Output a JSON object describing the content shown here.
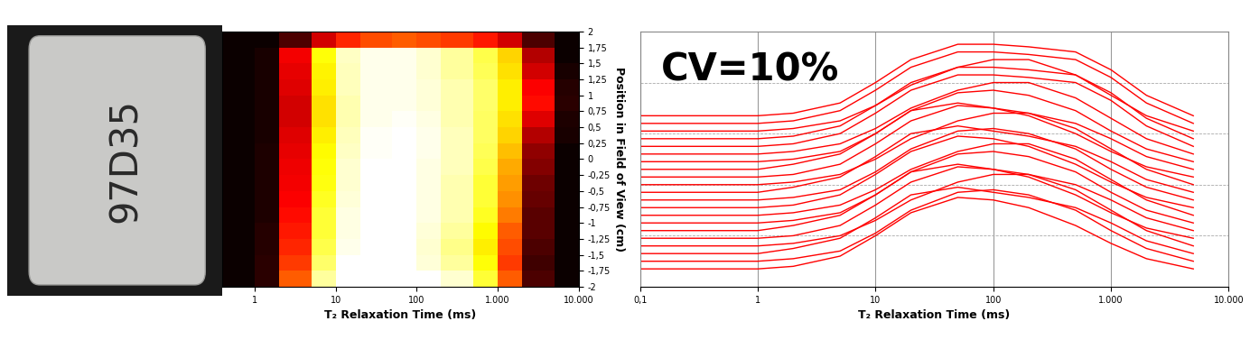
{
  "photo": {
    "label": "97D35"
  },
  "chart_data": [
    {
      "type": "heatmap",
      "xlabel": "T₂ Relaxation Time (ms)",
      "ylabel": "Position in Field of View (cm)",
      "log": "x",
      "color": "hot",
      "value_range": [
        0,
        1
      ],
      "xlim": [
        0.4,
        10000
      ],
      "xticks": [
        1,
        10,
        100,
        {
          "value": 1000,
          "label": "1.000"
        },
        {
          "value": 10000,
          "label": "10.000"
        }
      ],
      "ylim": [
        -2,
        2
      ],
      "yticks": [
        -2,
        {
          "value": -1.75,
          "label": "-1,75"
        },
        {
          "value": -1.5,
          "label": "-1,5"
        },
        {
          "value": -1.25,
          "label": "-1,25"
        },
        -1,
        {
          "value": -0.75,
          "label": "-0,75"
        },
        {
          "value": -0.5,
          "label": "-0,5"
        },
        {
          "value": -0.25,
          "label": "-0,25"
        },
        0,
        {
          "value": 0.25,
          "label": "0,25"
        },
        {
          "value": 0.5,
          "label": "0,5"
        },
        {
          "value": 0.75,
          "label": "0,75"
        },
        1,
        {
          "value": 1.25,
          "label": "1,25"
        },
        {
          "value": 1.5,
          "label": "1,5"
        },
        {
          "value": 1.75,
          "label": "1,75"
        },
        2
      ],
      "x_bins": [
        0.4,
        1,
        2,
        5,
        10,
        20,
        50,
        100,
        200,
        500,
        1000,
        2000,
        5000,
        10000
      ],
      "y_bins": [
        -2,
        -1.75,
        -1.5,
        -1.25,
        -1,
        -0.75,
        -0.5,
        -0.25,
        0,
        0.25,
        0.5,
        0.75,
        1,
        1.25,
        1.5,
        1.75,
        2
      ],
      "cells": [
        [
          0,
          0.05,
          0.5,
          0.9,
          1,
          1,
          1,
          1,
          0.95,
          0.8,
          0.5,
          0.1,
          0
        ],
        [
          0,
          0.05,
          0.45,
          0.85,
          1,
          1,
          1,
          0.96,
          0.9,
          0.75,
          0.45,
          0.08,
          0
        ],
        [
          0,
          0.04,
          0.42,
          0.82,
          0.98,
          1,
          1,
          0.95,
          0.88,
          0.72,
          0.48,
          0.1,
          0
        ],
        [
          0,
          0.04,
          0.4,
          0.8,
          0.97,
          1,
          1,
          0.96,
          0.9,
          0.74,
          0.5,
          0.12,
          0
        ],
        [
          0,
          0.03,
          0.38,
          0.8,
          0.97,
          1,
          1,
          0.97,
          0.92,
          0.78,
          0.55,
          0.12,
          0
        ],
        [
          0,
          0.03,
          0.36,
          0.78,
          0.96,
          1,
          1,
          0.97,
          0.92,
          0.8,
          0.58,
          0.14,
          0
        ],
        [
          0,
          0.03,
          0.35,
          0.76,
          0.95,
          1,
          1,
          0.97,
          0.92,
          0.8,
          0.6,
          0.15,
          0
        ],
        [
          0,
          0.03,
          0.34,
          0.75,
          0.95,
          1,
          1,
          0.97,
          0.93,
          0.82,
          0.62,
          0.18,
          0
        ],
        [
          0,
          0.03,
          0.33,
          0.74,
          0.94,
          0.99,
          1,
          0.98,
          0.93,
          0.83,
          0.65,
          0.2,
          0
        ],
        [
          0,
          0.02,
          0.32,
          0.72,
          0.93,
          0.99,
          1,
          0.98,
          0.93,
          0.84,
          0.68,
          0.25,
          0.02
        ],
        [
          0,
          0.02,
          0.3,
          0.7,
          0.92,
          0.98,
          0.99,
          0.97,
          0.92,
          0.84,
          0.7,
          0.32,
          0.03
        ],
        [
          0,
          0.02,
          0.3,
          0.7,
          0.92,
          0.98,
          0.98,
          0.96,
          0.92,
          0.85,
          0.72,
          0.38,
          0.05
        ],
        [
          0,
          0.02,
          0.32,
          0.72,
          0.93,
          0.98,
          0.98,
          0.96,
          0.92,
          0.85,
          0.72,
          0.36,
          0.04
        ],
        [
          0,
          0.02,
          0.33,
          0.73,
          0.93,
          0.98,
          0.98,
          0.95,
          0.9,
          0.83,
          0.7,
          0.3,
          0.02
        ],
        [
          0,
          0.02,
          0.35,
          0.75,
          0.94,
          0.98,
          0.98,
          0.95,
          0.9,
          0.82,
          0.68,
          0.25,
          0
        ],
        [
          0,
          0,
          0.1,
          0.3,
          0.42,
          0.48,
          0.5,
          0.48,
          0.45,
          0.4,
          0.3,
          0.1,
          0
        ]
      ]
    },
    {
      "type": "line",
      "annotation": "CV=10%",
      "xlabel": "T₂ Relaxation Time (ms)",
      "log": "x",
      "grid": true,
      "tick_labels": "x",
      "color": "#ff0000",
      "xlim": [
        0.1,
        10000
      ],
      "xticks": [
        {
          "value": 0.1,
          "label": "0,1"
        },
        1,
        10,
        100,
        {
          "value": 1000,
          "label": "1.000"
        },
        {
          "value": 10000,
          "label": "10.000"
        }
      ],
      "ylim": [
        0,
        100
      ],
      "yticks": [
        0,
        20,
        40,
        60,
        80,
        100
      ],
      "x": [
        0.1,
        1,
        2,
        5,
        10,
        20,
        50,
        100,
        200,
        500,
        1000,
        2000,
        5000
      ],
      "series": [
        {
          "values": [
            7,
            7,
            8,
            12,
            20,
            29,
            35,
            34,
            31,
            24,
            17,
            11,
            7
          ]
        },
        {
          "values": [
            10,
            10,
            11,
            14,
            21,
            30,
            37,
            38,
            36,
            30,
            22,
            15,
            10
          ]
        },
        {
          "values": [
            13,
            13,
            15,
            19,
            27,
            36,
            39,
            37,
            35,
            31,
            25,
            18,
            13
          ]
        },
        {
          "values": [
            16,
            16,
            17,
            20,
            26,
            34,
            41,
            44,
            44,
            38,
            30,
            22,
            16
          ]
        },
        {
          "values": [
            19,
            19,
            20,
            24,
            32,
            41,
            47,
            46,
            43,
            36,
            29,
            23,
            19
          ]
        },
        {
          "values": [
            22,
            22,
            24,
            28,
            36,
            45,
            48,
            46,
            44,
            40,
            34,
            27,
            22
          ]
        },
        {
          "values": [
            25,
            25,
            26,
            29,
            36,
            45,
            52,
            53,
            51,
            45,
            37,
            30,
            25
          ]
        },
        {
          "values": [
            28,
            28,
            29,
            32,
            38,
            46,
            53,
            56,
            56,
            50,
            42,
            34,
            28
          ]
        },
        {
          "values": [
            31,
            31,
            32,
            36,
            44,
            53,
            59,
            58,
            55,
            48,
            41,
            35,
            31
          ]
        },
        {
          "values": [
            34,
            34,
            35,
            38,
            45,
            54,
            61,
            62,
            60,
            54,
            46,
            39,
            34
          ]
        },
        {
          "values": [
            37,
            37,
            39,
            43,
            51,
            60,
            63,
            61,
            59,
            55,
            49,
            42,
            37
          ]
        },
        {
          "values": [
            40,
            40,
            41,
            44,
            50,
            58,
            65,
            68,
            68,
            62,
            54,
            46,
            40
          ]
        },
        {
          "values": [
            43,
            43,
            44,
            48,
            56,
            65,
            71,
            70,
            67,
            60,
            53,
            47,
            43
          ]
        },
        {
          "values": [
            46,
            46,
            48,
            52,
            60,
            69,
            72,
            70,
            68,
            64,
            58,
            51,
            46
          ]
        },
        {
          "values": [
            49,
            49,
            50,
            53,
            60,
            69,
            76,
            77,
            75,
            69,
            61,
            54,
            49
          ]
        },
        {
          "values": [
            52,
            52,
            53,
            56,
            62,
            70,
            77,
            80,
            80,
            74,
            66,
            58,
            52
          ]
        },
        {
          "values": [
            55,
            55,
            56,
            60,
            68,
            77,
            83,
            83,
            82,
            80,
            73,
            63,
            55
          ]
        },
        {
          "values": [
            58,
            58,
            59,
            63,
            71,
            80,
            86,
            86,
            85,
            83,
            76,
            66,
            58
          ]
        },
        {
          "values": [
            61,
            61,
            62,
            65,
            71,
            79,
            86,
            89,
            89,
            83,
            75,
            67,
            61
          ]
        },
        {
          "values": [
            64,
            64,
            65,
            69,
            77,
            86,
            92,
            92,
            91,
            89,
            82,
            72,
            64
          ]
        },
        {
          "values": [
            67,
            67,
            68,
            72,
            80,
            89,
            95,
            95,
            94,
            92,
            85,
            75,
            67
          ]
        }
      ]
    }
  ]
}
